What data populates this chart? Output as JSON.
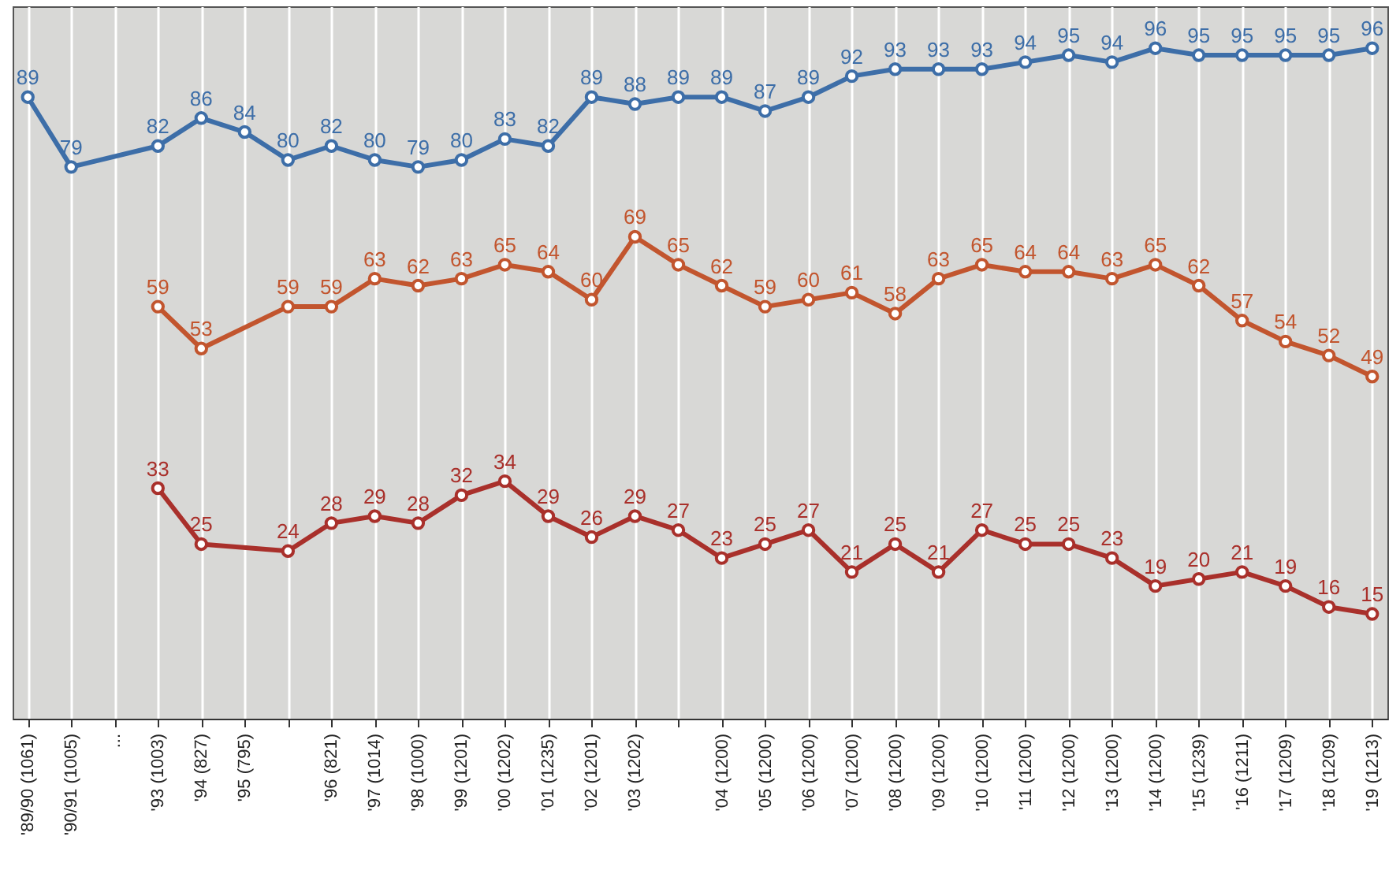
{
  "chart_data": {
    "type": "line",
    "categories": [
      "'89/90 (1061)",
      "'90/91 (1005)",
      "...",
      "'93 (1003)",
      "'94 (827)",
      "'95 (795)",
      null,
      "'96 (821)",
      "'97 (1014)",
      "'98 (1000)",
      "'99 (1201)",
      "'00 (1202)",
      "'01 (1235)",
      "'02 (1201)",
      "'03 (1202)",
      null,
      "'04 (1200)",
      "'05 (1200)",
      "'06 (1200)",
      "'07 (1200)",
      "'08 (1200)",
      "'09 (1200)",
      "'10 (1200)",
      "'11 (1200)",
      "'12 (1200)",
      "'13 (1200)",
      "'14 (1200)",
      "'15 (1239)",
      "'16 (1211)",
      "'17 (1209)",
      "'18 (1209)",
      "'19 (1213)"
    ],
    "ylim": [
      0,
      102
    ],
    "tick_labels": "x",
    "grid": "x",
    "marker": "circle",
    "line_style": "solid",
    "data_labels": true,
    "series": [
      {
        "color": "#3d6ea8",
        "values": [
          89,
          79,
          null,
          82,
          86,
          84,
          80,
          82,
          80,
          79,
          80,
          83,
          82,
          89,
          88,
          89,
          89,
          87,
          89,
          92,
          93,
          93,
          93,
          94,
          95,
          94,
          96,
          95,
          95,
          95,
          95,
          96
        ]
      },
      {
        "color": "#c2552e",
        "values": [
          null,
          null,
          null,
          59,
          53,
          null,
          59,
          59,
          63,
          62,
          63,
          65,
          64,
          60,
          69,
          65,
          62,
          59,
          60,
          61,
          58,
          63,
          65,
          64,
          64,
          63,
          65,
          62,
          57,
          54,
          52,
          49
        ]
      },
      {
        "color": "#a9302b",
        "values": [
          null,
          null,
          null,
          33,
          25,
          null,
          24,
          28,
          29,
          28,
          32,
          34,
          29,
          26,
          29,
          27,
          23,
          25,
          27,
          21,
          25,
          21,
          27,
          25,
          25,
          23,
          19,
          20,
          21,
          19,
          16,
          15
        ]
      }
    ]
  }
}
